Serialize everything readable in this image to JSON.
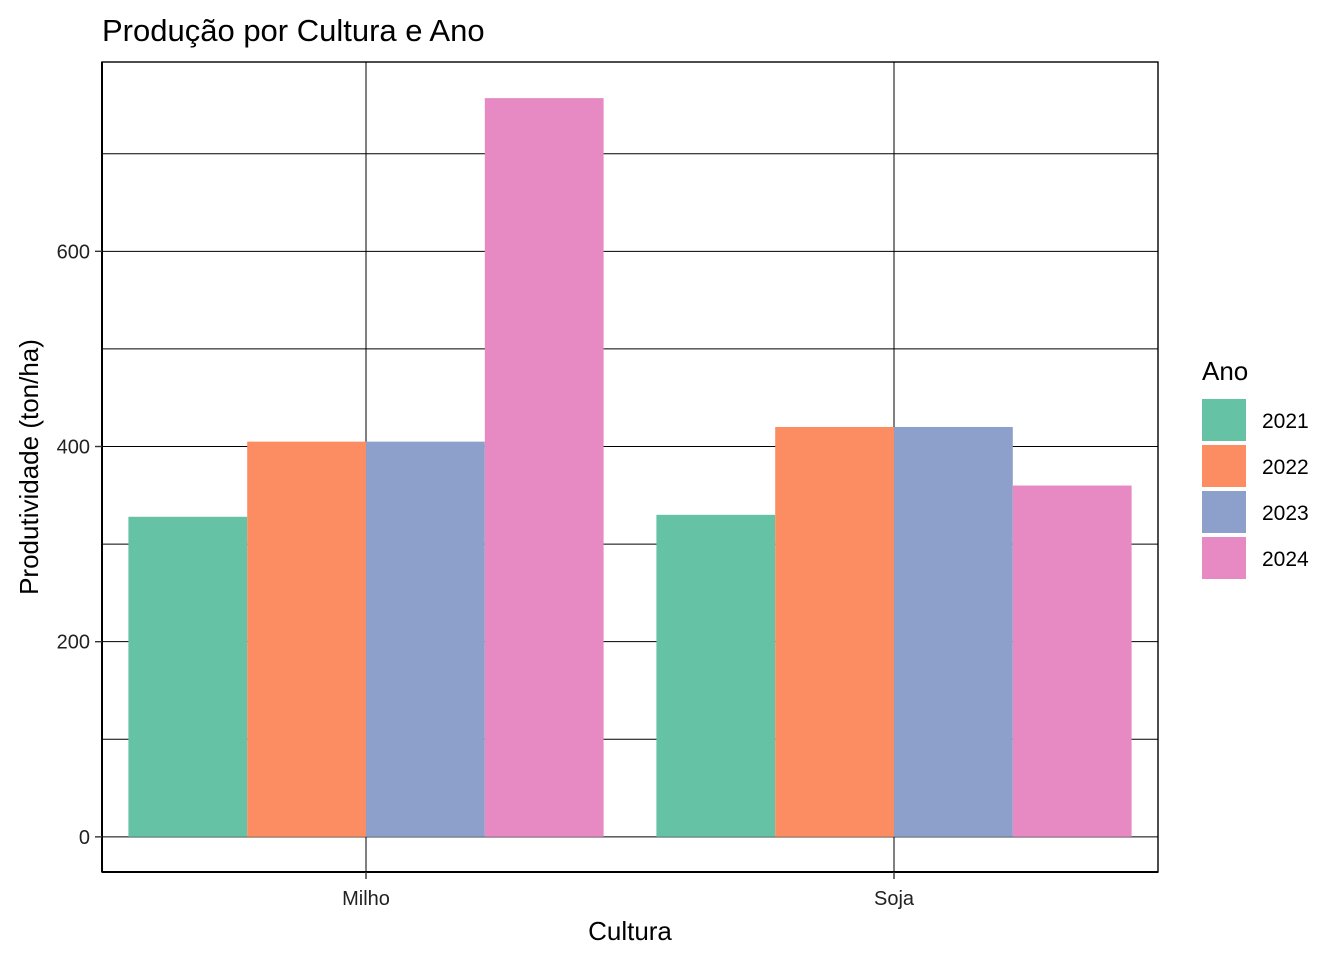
{
  "chart_data": {
    "type": "bar",
    "title": "Produção por Cultura e Ano",
    "xlabel": "Cultura",
    "ylabel": "Produtividade (ton/ha)",
    "categories": [
      "Milho",
      "Soja"
    ],
    "series": [
      {
        "name": "2021",
        "color": "#66c2a5",
        "values": [
          328,
          330
        ]
      },
      {
        "name": "2022",
        "color": "#fc8d62",
        "values": [
          405,
          420
        ]
      },
      {
        "name": "2023",
        "color": "#8da0cb",
        "values": [
          405,
          420
        ]
      },
      {
        "name": "2024",
        "color": "#e78ac3",
        "values": [
          757,
          360
        ]
      }
    ],
    "ylim": [
      -36,
      794
    ],
    "yticks": [
      0,
      200,
      400,
      600
    ],
    "grid": true,
    "legend": {
      "title": "Ano",
      "position": "right"
    }
  }
}
